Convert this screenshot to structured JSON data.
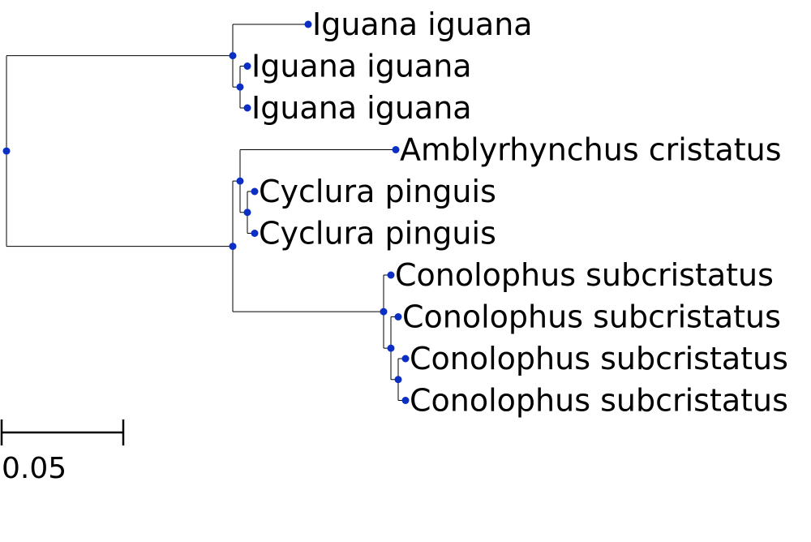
{
  "tree": {
    "node_color": "#0b2fc4",
    "branch_color": "#000000",
    "scale_bar": {
      "label": "0.05",
      "length": 0.05
    },
    "root": {
      "branch_length": 0,
      "children": [
        {
          "branch_length": 0.093,
          "children": [
            {
              "label": "Iguana iguana",
              "branch_length": 0.031
            },
            {
              "branch_length": 0.003,
              "children": [
                {
                  "label": "Iguana iguana",
                  "branch_length": 0.003
                },
                {
                  "label": "Iguana iguana",
                  "branch_length": 0.003
                }
              ]
            }
          ]
        },
        {
          "branch_length": 0.093,
          "children": [
            {
              "branch_length": 0.003,
              "children": [
                {
                  "label": "Amblyrhynchus cristatus",
                  "branch_length": 0.064
                },
                {
                  "branch_length": 0.003,
                  "children": [
                    {
                      "label": "Cyclura pinguis",
                      "branch_length": 0.003
                    },
                    {
                      "label": "Cyclura pinguis",
                      "branch_length": 0.003
                    }
                  ]
                }
              ]
            },
            {
              "branch_length": 0.062,
              "children": [
                {
                  "label": "Conolophus subcristatus",
                  "branch_length": 0.003
                },
                {
                  "branch_length": 0.003,
                  "children": [
                    {
                      "label": "Conolophus subcristatus",
                      "branch_length": 0.003
                    },
                    {
                      "branch_length": 0.003,
                      "children": [
                        {
                          "label": "Conolophus subcristatus",
                          "branch_length": 0.003
                        },
                        {
                          "label": "Conolophus subcristatus",
                          "branch_length": 0.003
                        }
                      ]
                    }
                  ]
                }
              ]
            }
          ]
        }
      ]
    }
  }
}
